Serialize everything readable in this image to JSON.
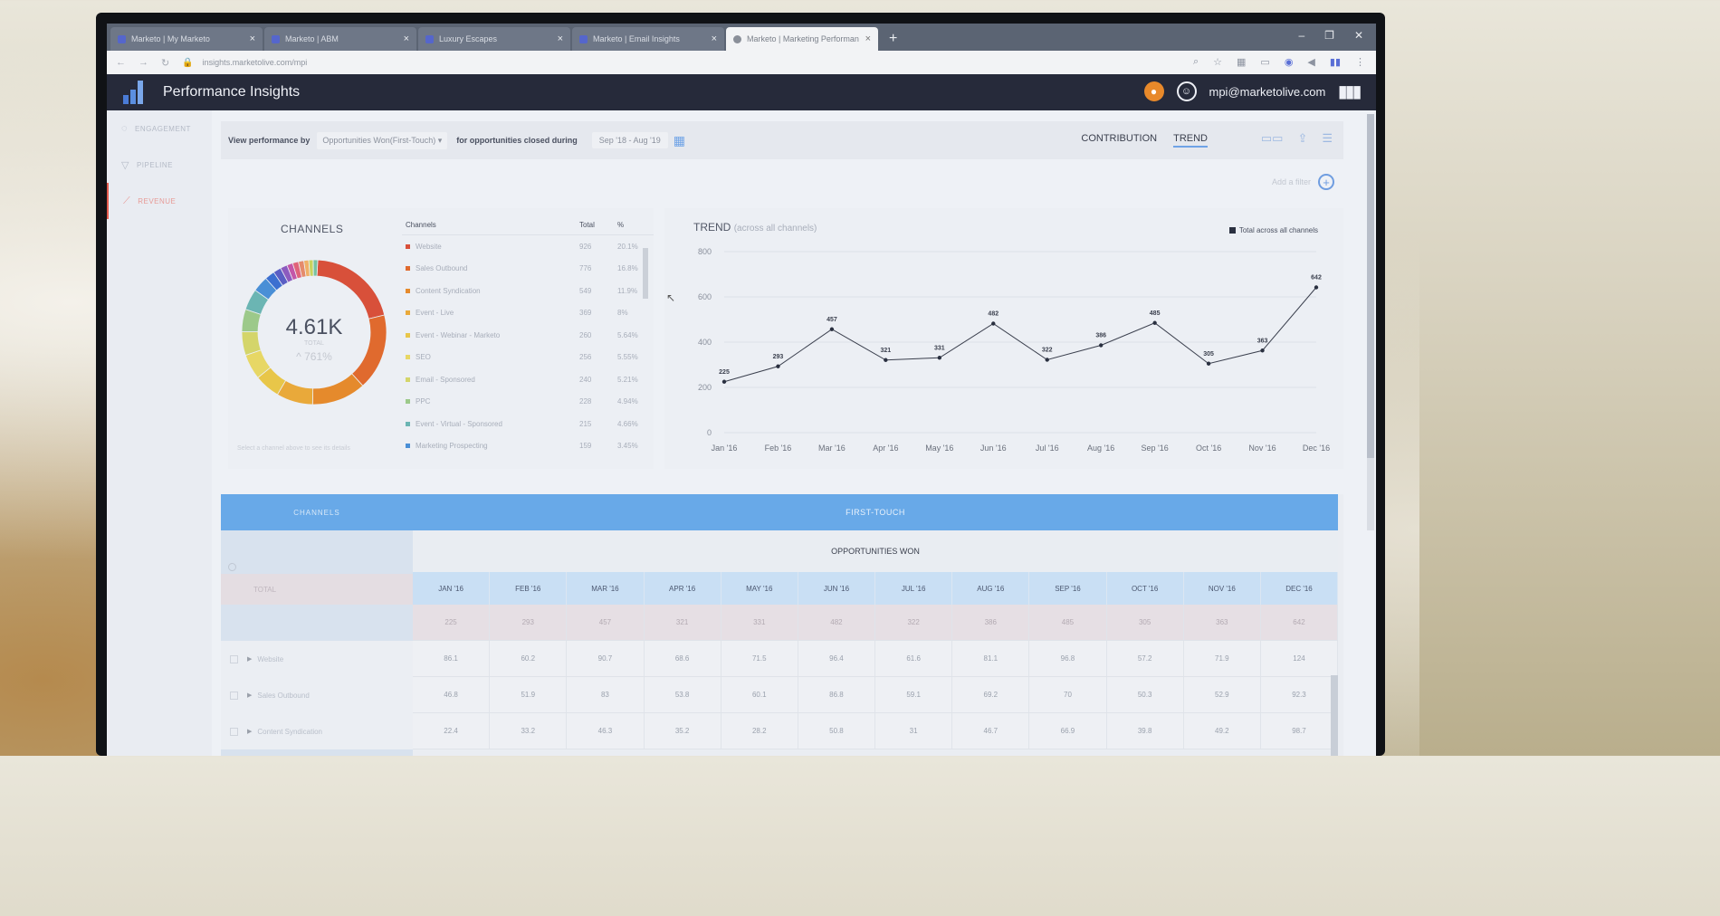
{
  "browser": {
    "tabs": [
      {
        "label": "Marketo | My Marketo",
        "active": false
      },
      {
        "label": "Marketo | ABM",
        "active": false
      },
      {
        "label": "Luxury Escapes",
        "active": false
      },
      {
        "label": "Marketo | Email Insights",
        "active": false
      },
      {
        "label": "Marketo | Marketing Performan",
        "active": true
      }
    ],
    "new_tab": "+",
    "url": "insights.marketolive.com/mpi"
  },
  "header": {
    "app_title": "Performance Insights",
    "user_email": "mpi@marketolive.com"
  },
  "nav": {
    "items": [
      {
        "label": "ENGAGEMENT",
        "active": false
      },
      {
        "label": "PIPELINE",
        "active": false
      },
      {
        "label": "REVENUE",
        "active": true
      }
    ]
  },
  "filters": {
    "view_by_label": "View performance by",
    "view_by_value": "Opportunities Won(First-Touch)",
    "closed_label": "for opportunities closed during",
    "date_range": "Sep '18 - Aug '19",
    "views": [
      "CONTRIBUTION",
      "TREND"
    ],
    "active_view": "TREND",
    "add_filter": "Add a filter"
  },
  "channels": {
    "title": "CHANNELS",
    "total_value": "4.61K",
    "total_label": "TOTAL",
    "change": "^ 761%",
    "hint": "Select a channel above to see its details",
    "headers": [
      "Channels",
      "Total",
      "%"
    ],
    "rows": [
      {
        "name": "Website",
        "total": "926",
        "pct": "20.1%",
        "color": "#d8503a"
      },
      {
        "name": "Sales Outbound",
        "total": "776",
        "pct": "16.8%",
        "color": "#e06a2e"
      },
      {
        "name": "Content Syndication",
        "total": "549",
        "pct": "11.9%",
        "color": "#e58a2c"
      },
      {
        "name": "Event - Live",
        "total": "369",
        "pct": "8%",
        "color": "#e9a93a"
      },
      {
        "name": "Event - Webinar - Marketo",
        "total": "260",
        "pct": "5.64%",
        "color": "#e8c649"
      },
      {
        "name": "SEO",
        "total": "256",
        "pct": "5.55%",
        "color": "#e7d765"
      },
      {
        "name": "Email - Sponsored",
        "total": "240",
        "pct": "5.21%",
        "color": "#d4d56a"
      },
      {
        "name": "PPC",
        "total": "228",
        "pct": "4.94%",
        "color": "#9cc98a"
      },
      {
        "name": "Event - Virtual - Sponsored",
        "total": "215",
        "pct": "4.66%",
        "color": "#6bb5b3"
      },
      {
        "name": "Marketing Prospecting",
        "total": "159",
        "pct": "3.45%",
        "color": "#4a8fd6"
      }
    ],
    "donut_rest": [
      {
        "value": 100,
        "color": "#3c6fd0"
      },
      {
        "value": 80,
        "color": "#5a5ec4"
      },
      {
        "value": 70,
        "color": "#8c5bbf"
      },
      {
        "value": 60,
        "color": "#c456a8"
      },
      {
        "value": 60,
        "color": "#e0637a"
      },
      {
        "value": 55,
        "color": "#e58b6b"
      },
      {
        "value": 50,
        "color": "#f0b066"
      },
      {
        "value": 45,
        "color": "#c9d35e"
      },
      {
        "value": 45,
        "color": "#79c2a0"
      }
    ]
  },
  "chart_data": {
    "type": "line",
    "title": "TREND",
    "subtitle": "(across all channels)",
    "legend": "Total across all channels",
    "legend_position": "top-right",
    "categories": [
      "Jan '16",
      "Feb '16",
      "Mar '16",
      "Apr '16",
      "May '16",
      "Jun '16",
      "Jul '16",
      "Aug '16",
      "Sep '16",
      "Oct '16",
      "Nov '16",
      "Dec '16"
    ],
    "series": [
      {
        "name": "Total across all channels",
        "values": [
          225,
          293,
          457,
          321,
          331,
          482,
          322,
          386,
          485,
          305,
          363,
          642
        ]
      }
    ],
    "ylim": [
      0,
      800
    ],
    "yticks": [
      0,
      200,
      400,
      600,
      800
    ],
    "grid": true
  },
  "grid": {
    "channels_header": "CHANNELS",
    "firsttouch_header": "FIRST-TOUCH",
    "metric_header": "OPPORTUNITIES WON",
    "months": [
      "JAN '16",
      "FEB '16",
      "MAR '16",
      "APR '16",
      "MAY '16",
      "JUN '16",
      "JUL '16",
      "AUG '16",
      "SEP '16",
      "OCT '16",
      "NOV '16",
      "DEC '16"
    ],
    "total_label": "TOTAL",
    "total_row": [
      "225",
      "293",
      "457",
      "321",
      "331",
      "482",
      "322",
      "386",
      "485",
      "305",
      "363",
      "642"
    ],
    "rows": [
      {
        "label": "Website",
        "values": [
          "86.1",
          "60.2",
          "90.7",
          "68.6",
          "71.5",
          "96.4",
          "61.6",
          "81.1",
          "96.8",
          "57.2",
          "71.9",
          "124"
        ]
      },
      {
        "label": "Sales Outbound",
        "values": [
          "46.8",
          "51.9",
          "83",
          "53.8",
          "60.1",
          "86.8",
          "59.1",
          "69.2",
          "70",
          "50.3",
          "52.9",
          "92.3"
        ]
      },
      {
        "label": "Content Syndication",
        "values": [
          "22.4",
          "33.2",
          "46.3",
          "35.2",
          "28.2",
          "50.8",
          "31",
          "46.7",
          "66.9",
          "39.8",
          "49.2",
          "98.7"
        ]
      }
    ]
  }
}
